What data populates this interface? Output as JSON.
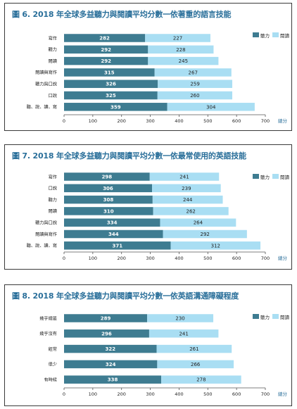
{
  "colors": {
    "listening": "#3e7c91",
    "reading": "#a9def3",
    "title": "#2a6f9a"
  },
  "chart_data": [
    {
      "type": "bar",
      "stacked": true,
      "orientation": "horizontal",
      "title": "圖 6. 2018 年全球多益聽力與閱讀平均分數一依著重的語言技能",
      "categories": [
        "寫作",
        "聽力",
        "閱讀",
        "閱讀與寫作",
        "聽力與口說",
        "口說",
        "聽、說、讀、寫"
      ],
      "series": [
        {
          "name": "聽力",
          "values": [
            282,
            292,
            292,
            315,
            326,
            325,
            359
          ]
        },
        {
          "name": "閱讀",
          "values": [
            227,
            228,
            245,
            267,
            259,
            260,
            304
          ]
        }
      ],
      "xlabel": "總分",
      "xlim": [
        0,
        700
      ],
      "xticks": [
        "0",
        "100",
        "200",
        "300",
        "400",
        "500",
        "600",
        "700"
      ],
      "legend_position": "top-right"
    },
    {
      "type": "bar",
      "stacked": true,
      "orientation": "horizontal",
      "title": "圖 7. 2018 年全球多益聽力與閱讀平均分數一依最常使用的英語技能",
      "categories": [
        "寫作",
        "口說",
        "聽力",
        "閱讀",
        "聽力與口說",
        "閱讀與寫作",
        "聽、說、讀、寫"
      ],
      "series": [
        {
          "name": "聽力",
          "values": [
            298,
            306,
            308,
            310,
            334,
            344,
            371
          ]
        },
        {
          "name": "閱讀",
          "values": [
            241,
            239,
            244,
            262,
            264,
            292,
            312
          ]
        }
      ],
      "xlabel": "總分",
      "xlim": [
        0,
        700
      ],
      "xticks": [
        "0",
        "100",
        "200",
        "300",
        "400",
        "500",
        "600",
        "700"
      ],
      "legend_position": "top-right"
    },
    {
      "type": "bar",
      "stacked": true,
      "orientation": "horizontal",
      "title": "圖 8. 2018 年全球多益聽力與閱讀平均分數一依英語溝通障礙程度",
      "categories": [
        "幾乎總是",
        "幾乎沒有",
        "經常",
        "很少",
        "有時候"
      ],
      "series": [
        {
          "name": "聽力",
          "values": [
            289,
            296,
            322,
            324,
            338
          ]
        },
        {
          "name": "閱讀",
          "values": [
            230,
            241,
            261,
            266,
            278
          ]
        }
      ],
      "xlabel": "總分",
      "xlim": [
        0,
        700
      ],
      "xticks": [
        "0",
        "100",
        "200",
        "300",
        "400",
        "500",
        "600",
        "700"
      ],
      "legend_position": "top-right"
    }
  ]
}
